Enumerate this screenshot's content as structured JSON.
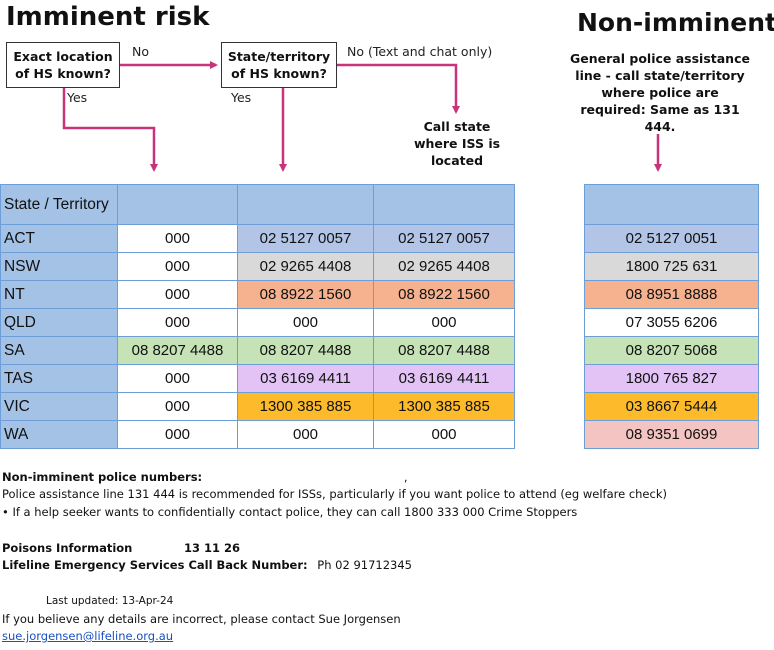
{
  "headings": {
    "imminent": "Imminent risk",
    "non_imminent": "Non-imminent"
  },
  "flow": {
    "box_location": "Exact location of HS known?",
    "box_state": "State/territory of HS known?",
    "no_1": "No",
    "yes_1": "Yes",
    "no_2": "No (Text and chat only)",
    "yes_2": "Yes",
    "call_state": "Call state where ISS is located",
    "non_imminent_note": "General police assistance line - call state/territory where police are required: Same as 131 444."
  },
  "colors": {
    "header_blue": "#a4c2e6",
    "ACT": "#b2c5e6",
    "NSW": "#d9d9d9",
    "NT": "#f6b28f",
    "QLD": "#ffffff",
    "SA": "#c5e3b6",
    "TAS": "#e3c3f6",
    "VIC": "#fdbb2c",
    "WA_non_imminent": "#f4c4c2",
    "arrow": "#c8347a"
  },
  "table": {
    "header": "State / Territory",
    "rows": [
      {
        "state": "ACT",
        "c1": "000",
        "c2": "02 5127 0057",
        "c3": "02 5127 0057",
        "ni": "02 5127 0051"
      },
      {
        "state": "NSW",
        "c1": "000",
        "c2": "02 9265 4408",
        "c3": "02 9265 4408",
        "ni": "1800 725 631"
      },
      {
        "state": "NT",
        "c1": "000",
        "c2": "08 8922 1560",
        "c3": "08 8922 1560",
        "ni": "08 8951 8888"
      },
      {
        "state": "QLD",
        "c1": "000",
        "c2": "000",
        "c3": "000",
        "ni": "07 3055 6206"
      },
      {
        "state": "SA",
        "c1": "08 8207 4488",
        "c2": "08 8207 4488",
        "c3": "08 8207 4488",
        "ni": "08 8207 5068"
      },
      {
        "state": "TAS",
        "c1": "000",
        "c2": "03 6169 4411",
        "c3": "03 6169 4411",
        "ni": "1800 765 827"
      },
      {
        "state": "VIC",
        "c1": "000",
        "c2": "1300 385 885",
        "c3": "1300 385 885",
        "ni": "03 8667 5444"
      },
      {
        "state": "WA",
        "c1": "000",
        "c2": "000",
        "c3": "000",
        "ni": "08 9351 0699"
      }
    ]
  },
  "notes": {
    "non_imminent_title": "Non-imminent police numbers:",
    "comma": ",",
    "line1": "Police assistance line 131 444 is recommended for ISSs, particularly if you want police to attend (eg welfare check)",
    "line2": "• If a help seeker wants to confidentially contact police, they can call 1800 333 000 Crime Stoppers",
    "poisons_label": "Poisons Information",
    "poisons_number": "13 11 26",
    "lifeline_label": "Lifeline Emergency Services Call Back Number:",
    "lifeline_number": "Ph 02 91712345",
    "last_updated": "Last updated:  13-Apr-24",
    "contact": "If you believe any details are incorrect, please contact Sue Jorgensen",
    "email": "sue.jorgensen@lifeline.org.au"
  }
}
